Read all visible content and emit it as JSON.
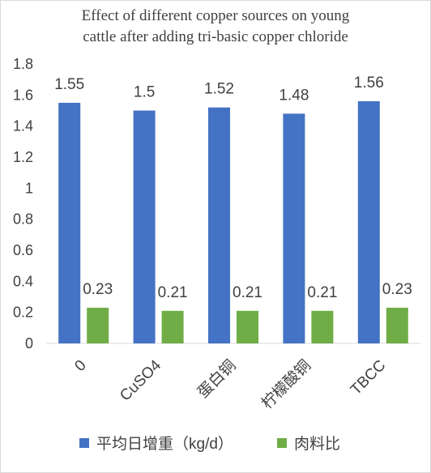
{
  "chart_data": {
    "type": "bar",
    "title_lines": [
      "Effect of different copper sources on young",
      "cattle after adding tri-basic copper chloride"
    ],
    "categories": [
      "0",
      "CuSO4",
      "蛋白铜",
      "柠檬酸铜",
      "TBCC"
    ],
    "series": [
      {
        "name": "平均日增重（kg/d）",
        "values": [
          1.55,
          1.5,
          1.52,
          1.48,
          1.56
        ],
        "color": "#4472C4"
      },
      {
        "name": "肉料比",
        "values": [
          0.23,
          0.21,
          0.21,
          0.21,
          0.23
        ],
        "color": "#70AD47"
      }
    ],
    "yticks": [
      "0",
      "0.2",
      "0.4",
      "0.6",
      "0.8",
      "1",
      "1.2",
      "1.4",
      "1.6",
      "1.8"
    ],
    "ylim": [
      0,
      1.8
    ],
    "grid": false,
    "legend_position": "bottom",
    "xlabel": "",
    "ylabel": ""
  }
}
